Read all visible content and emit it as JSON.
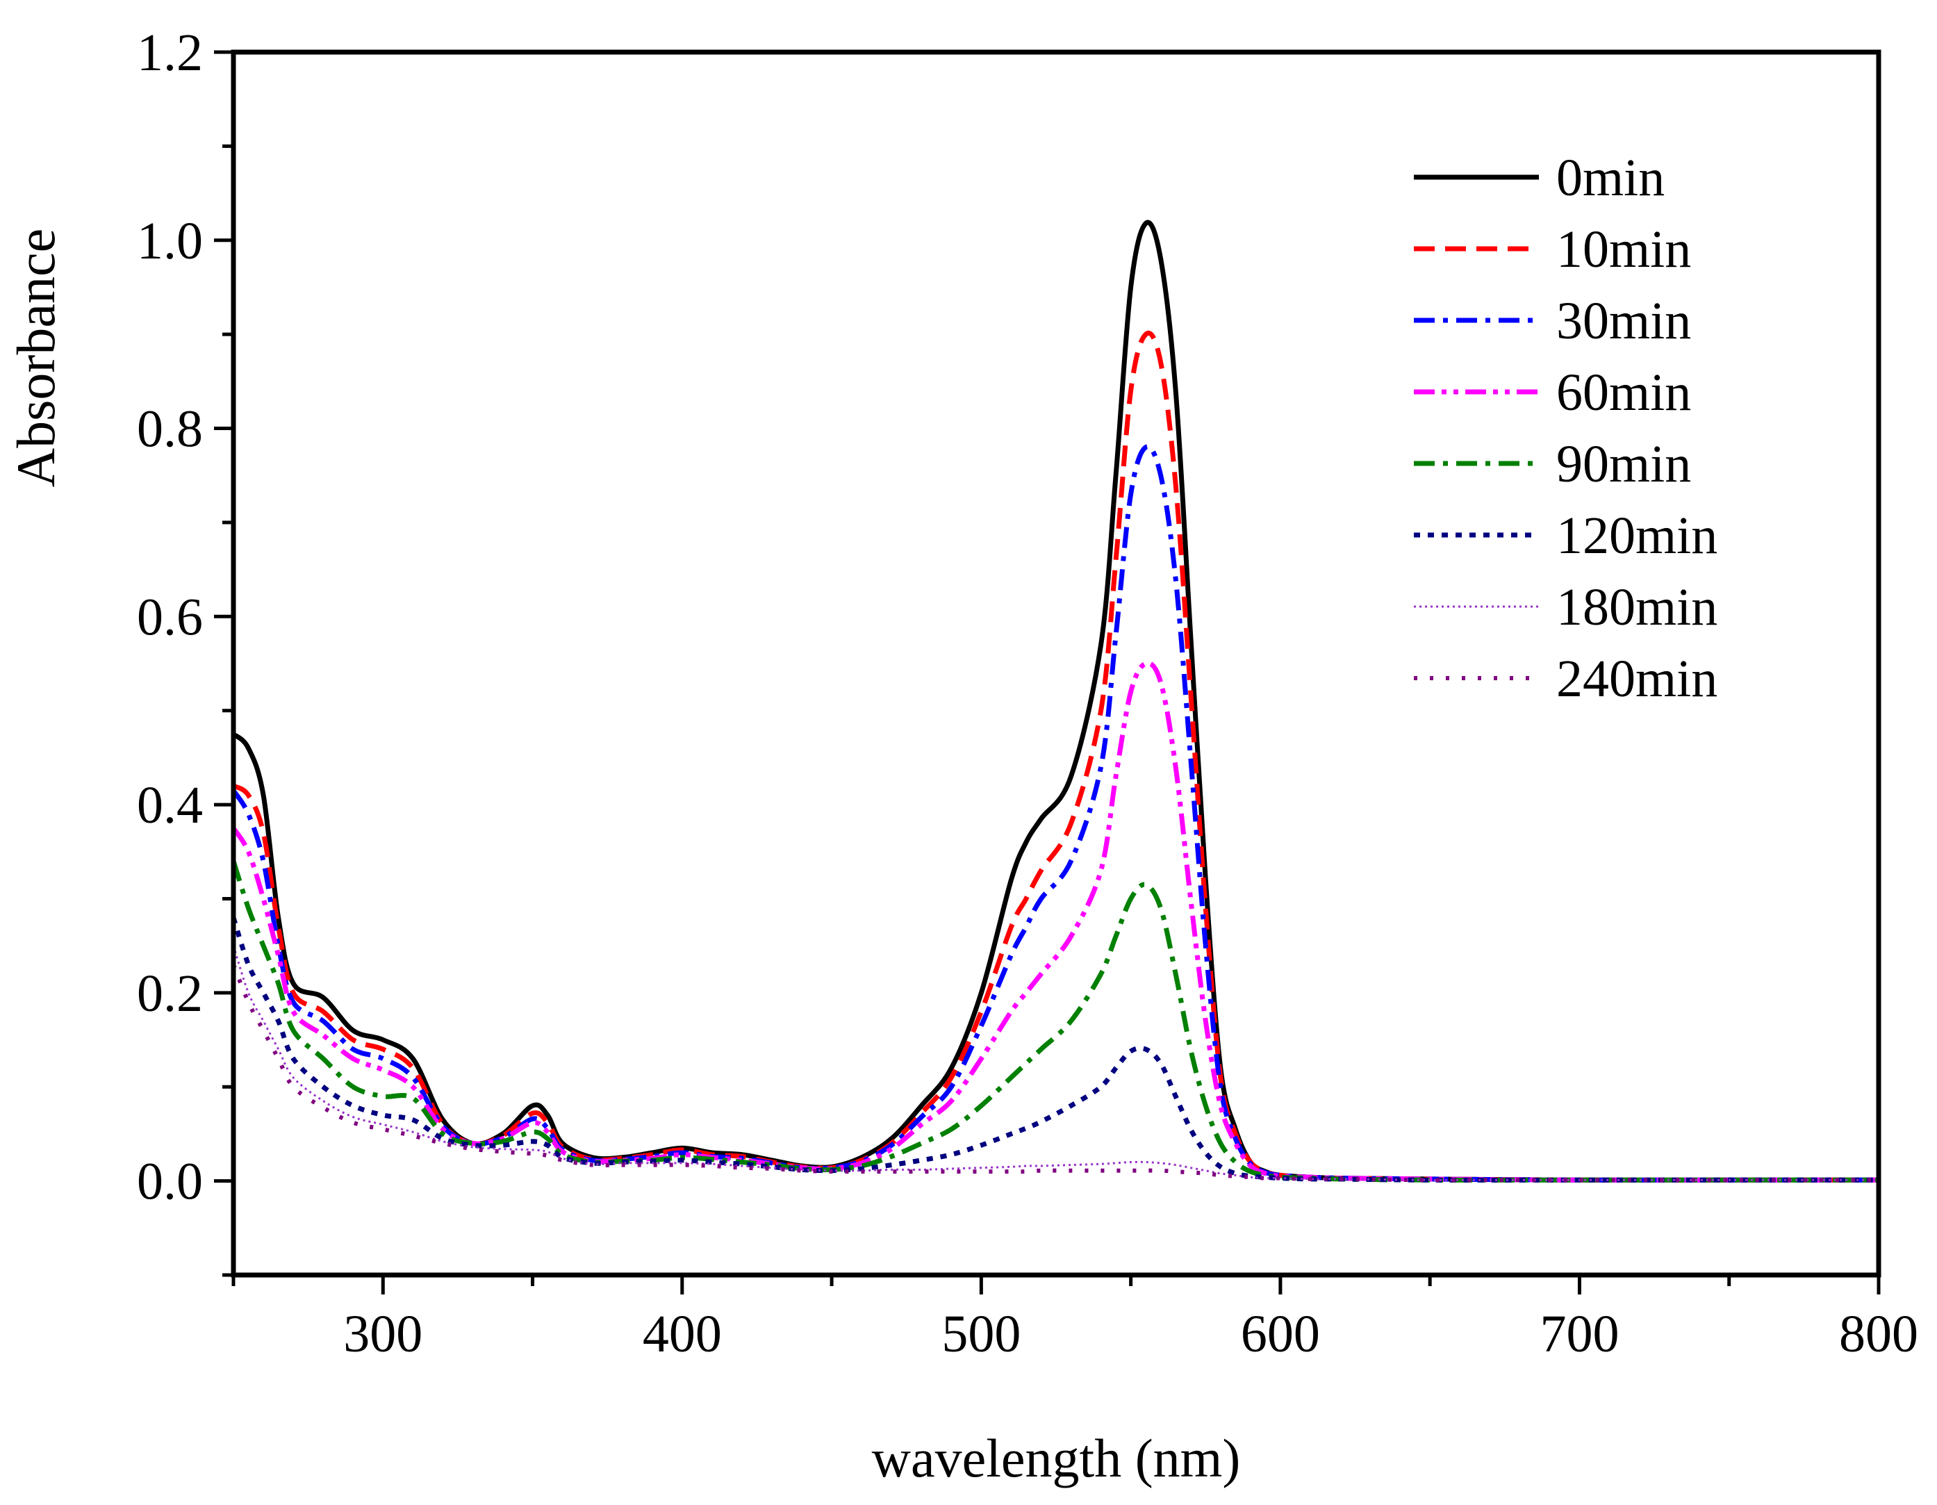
{
  "chart_data": {
    "type": "line",
    "title": "",
    "xlabel": "wavelength (nm)",
    "ylabel": "Absorbance",
    "xlim": [
      250,
      800
    ],
    "ylim": [
      -0.1,
      1.2
    ],
    "xticks": [
      300,
      400,
      500,
      600,
      700,
      800
    ],
    "xtick_labels": [
      "300",
      "400",
      "500",
      "600",
      "700",
      "800"
    ],
    "yticks": [
      0.0,
      0.2,
      0.4,
      0.6,
      0.8,
      1.0,
      1.2
    ],
    "ytick_labels": [
      "0.0",
      "0.2",
      "0.4",
      "0.6",
      "0.8",
      "1.0",
      "1.2"
    ],
    "grid": false,
    "legend_position": "top-right",
    "x": [
      250,
      255,
      260,
      265,
      270,
      280,
      290,
      300,
      310,
      320,
      330,
      340,
      350,
      355,
      360,
      370,
      380,
      390,
      400,
      410,
      420,
      430,
      440,
      450,
      460,
      470,
      480,
      490,
      500,
      510,
      515,
      520,
      530,
      540,
      545,
      550,
      555,
      560,
      565,
      570,
      575,
      580,
      585,
      590,
      595,
      600,
      610,
      620,
      650,
      700,
      750,
      800
    ],
    "series": [
      {
        "name": "0min",
        "color": "#000000",
        "style": "solid",
        "values": [
          0.475,
          0.46,
          0.41,
          0.28,
          0.21,
          0.195,
          0.16,
          0.15,
          0.13,
          0.065,
          0.04,
          0.05,
          0.08,
          0.07,
          0.04,
          0.025,
          0.025,
          0.03,
          0.035,
          0.03,
          0.028,
          0.022,
          0.016,
          0.015,
          0.025,
          0.045,
          0.08,
          0.12,
          0.2,
          0.32,
          0.36,
          0.385,
          0.43,
          0.57,
          0.75,
          0.95,
          1.018,
          0.98,
          0.84,
          0.58,
          0.32,
          0.12,
          0.055,
          0.02,
          0.01,
          0.006,
          0.004,
          0.003,
          0.002,
          0.001,
          0.001,
          0.001
        ]
      },
      {
        "name": "10min",
        "color": "#ff0000",
        "style": "dash",
        "values": [
          0.42,
          0.41,
          0.37,
          0.27,
          0.2,
          0.18,
          0.15,
          0.14,
          0.12,
          0.06,
          0.04,
          0.048,
          0.072,
          0.062,
          0.036,
          0.023,
          0.024,
          0.028,
          0.033,
          0.028,
          0.026,
          0.02,
          0.015,
          0.014,
          0.022,
          0.04,
          0.072,
          0.11,
          0.18,
          0.27,
          0.3,
          0.33,
          0.38,
          0.5,
          0.66,
          0.84,
          0.9,
          0.87,
          0.74,
          0.52,
          0.29,
          0.11,
          0.05,
          0.02,
          0.01,
          0.006,
          0.004,
          0.003,
          0.002,
          0.001,
          0.001,
          0.001
        ]
      },
      {
        "name": "30min",
        "color": "#0000ff",
        "style": "dashdot",
        "values": [
          0.415,
          0.39,
          0.34,
          0.25,
          0.19,
          0.17,
          0.14,
          0.13,
          0.11,
          0.058,
          0.04,
          0.046,
          0.066,
          0.056,
          0.033,
          0.022,
          0.023,
          0.026,
          0.03,
          0.026,
          0.024,
          0.019,
          0.014,
          0.014,
          0.021,
          0.038,
          0.068,
          0.1,
          0.165,
          0.24,
          0.27,
          0.3,
          0.34,
          0.44,
          0.58,
          0.73,
          0.78,
          0.75,
          0.64,
          0.45,
          0.25,
          0.1,
          0.045,
          0.018,
          0.009,
          0.006,
          0.004,
          0.003,
          0.002,
          0.001,
          0.001,
          0.001
        ]
      },
      {
        "name": "60min",
        "color": "#ff00ff",
        "style": "dashdotdot",
        "values": [
          0.375,
          0.35,
          0.3,
          0.24,
          0.18,
          0.155,
          0.13,
          0.118,
          0.1,
          0.055,
          0.04,
          0.045,
          0.062,
          0.052,
          0.031,
          0.021,
          0.022,
          0.024,
          0.028,
          0.025,
          0.022,
          0.018,
          0.014,
          0.013,
          0.019,
          0.034,
          0.06,
          0.085,
          0.13,
          0.18,
          0.2,
          0.22,
          0.26,
          0.33,
          0.43,
          0.52,
          0.55,
          0.53,
          0.44,
          0.3,
          0.17,
          0.08,
          0.04,
          0.016,
          0.008,
          0.005,
          0.004,
          0.003,
          0.002,
          0.001,
          0.001,
          0.001
        ]
      },
      {
        "name": "90min",
        "color": "#008000",
        "style": "dashdot",
        "values": [
          0.34,
          0.29,
          0.25,
          0.21,
          0.16,
          0.13,
          0.1,
          0.09,
          0.088,
          0.05,
          0.04,
          0.042,
          0.052,
          0.045,
          0.028,
          0.02,
          0.021,
          0.022,
          0.025,
          0.023,
          0.02,
          0.017,
          0.013,
          0.012,
          0.016,
          0.026,
          0.04,
          0.055,
          0.08,
          0.11,
          0.125,
          0.14,
          0.17,
          0.22,
          0.26,
          0.3,
          0.315,
          0.29,
          0.22,
          0.14,
          0.08,
          0.04,
          0.02,
          0.01,
          0.006,
          0.004,
          0.003,
          0.002,
          0.001,
          0.001,
          0.001,
          0.001
        ]
      },
      {
        "name": "120min",
        "color": "#000080",
        "style": "dot",
        "values": [
          0.28,
          0.23,
          0.2,
          0.17,
          0.13,
          0.1,
          0.08,
          0.07,
          0.065,
          0.045,
          0.038,
          0.038,
          0.042,
          0.038,
          0.025,
          0.019,
          0.02,
          0.021,
          0.022,
          0.02,
          0.018,
          0.015,
          0.012,
          0.011,
          0.013,
          0.017,
          0.022,
          0.028,
          0.038,
          0.05,
          0.056,
          0.063,
          0.08,
          0.1,
          0.12,
          0.138,
          0.14,
          0.125,
          0.09,
          0.055,
          0.03,
          0.015,
          0.008,
          0.005,
          0.004,
          0.003,
          0.002,
          0.002,
          0.001,
          0.001,
          0.001,
          0.001
        ]
      },
      {
        "name": "180min",
        "color": "#9933cc",
        "style": "finedot",
        "values": [
          0.25,
          0.2,
          0.17,
          0.14,
          0.11,
          0.085,
          0.068,
          0.06,
          0.052,
          0.042,
          0.036,
          0.034,
          0.033,
          0.031,
          0.024,
          0.018,
          0.019,
          0.019,
          0.019,
          0.018,
          0.016,
          0.014,
          0.012,
          0.011,
          0.011,
          0.012,
          0.012,
          0.013,
          0.014,
          0.015,
          0.016,
          0.016,
          0.017,
          0.018,
          0.019,
          0.02,
          0.02,
          0.019,
          0.017,
          0.014,
          0.011,
          0.008,
          0.006,
          0.004,
          0.003,
          0.003,
          0.002,
          0.002,
          0.001,
          0.001,
          0.001,
          0.001
        ]
      },
      {
        "name": "240min",
        "color": "#800080",
        "style": "sparsedot",
        "values": [
          0.23,
          0.19,
          0.16,
          0.13,
          0.1,
          0.078,
          0.062,
          0.055,
          0.048,
          0.04,
          0.034,
          0.031,
          0.029,
          0.027,
          0.022,
          0.017,
          0.017,
          0.017,
          0.017,
          0.016,
          0.014,
          0.013,
          0.011,
          0.01,
          0.01,
          0.01,
          0.01,
          0.01,
          0.01,
          0.01,
          0.01,
          0.011,
          0.011,
          0.011,
          0.011,
          0.011,
          0.011,
          0.011,
          0.01,
          0.009,
          0.008,
          0.006,
          0.005,
          0.004,
          0.003,
          0.003,
          0.002,
          0.002,
          0.001,
          0.001,
          0.001,
          0.001
        ]
      }
    ]
  }
}
